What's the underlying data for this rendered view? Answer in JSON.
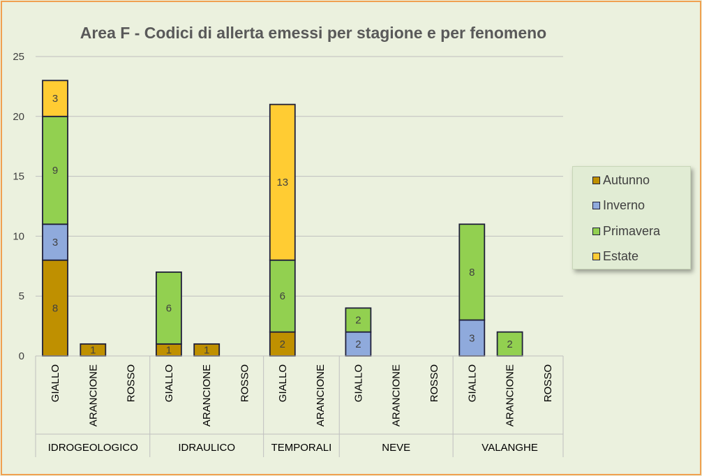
{
  "chart_data": {
    "type": "bar",
    "stacked": true,
    "title": "Area F - Codici di allerta emessi per stagione e per fenomeno",
    "xlabel": "",
    "ylabel": "",
    "ylim": [
      0,
      25
    ],
    "yticks": [
      "0",
      "5",
      "10",
      "15",
      "20",
      "25"
    ],
    "grid": true,
    "legend_position": "right",
    "groups": [
      {
        "label": "IDROGEOLOGICO",
        "categories": [
          "GIALLO",
          "ARANCIONE",
          "ROSSO"
        ]
      },
      {
        "label": "IDRAULICO",
        "categories": [
          "GIALLO",
          "ARANCIONE",
          "ROSSO"
        ]
      },
      {
        "label": "TEMPORALI",
        "categories": [
          "GIALLO",
          "ARANCIONE"
        ]
      },
      {
        "label": "NEVE",
        "categories": [
          "GIALLO",
          "ARANCIONE",
          "ROSSO"
        ]
      },
      {
        "label": "VALANGHE",
        "categories": [
          "GIALLO",
          "ARANCIONE",
          "ROSSO"
        ]
      }
    ],
    "series": [
      {
        "name": "Autunno",
        "color": "#bf9000",
        "values": [
          8,
          1,
          0,
          1,
          1,
          0,
          2,
          0,
          0,
          0,
          0,
          0,
          0,
          0
        ]
      },
      {
        "name": "Inverno",
        "color": "#8faadc",
        "values": [
          3,
          0,
          0,
          0,
          0,
          0,
          0,
          0,
          2,
          0,
          0,
          3,
          0,
          0
        ]
      },
      {
        "name": "Primavera",
        "color": "#92d050",
        "values": [
          9,
          0,
          0,
          6,
          0,
          0,
          6,
          0,
          2,
          0,
          0,
          8,
          2,
          0
        ]
      },
      {
        "name": "Estate",
        "color": "#ffcc33",
        "values": [
          3,
          0,
          0,
          0,
          0,
          0,
          13,
          0,
          0,
          0,
          0,
          0,
          0,
          0
        ]
      }
    ]
  }
}
